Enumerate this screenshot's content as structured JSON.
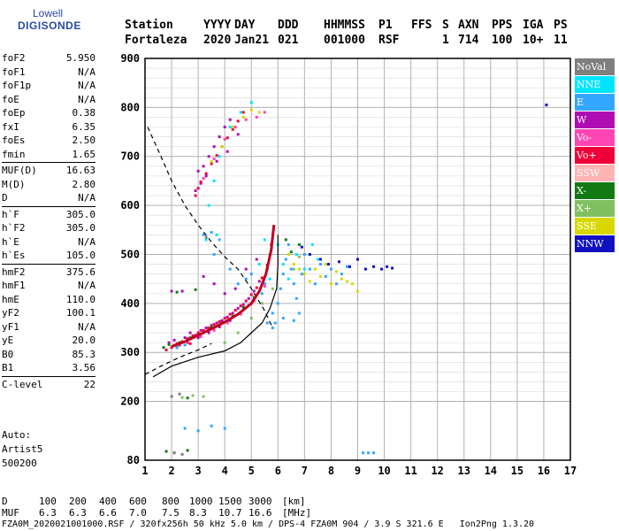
{
  "logo": {
    "line1": "Lowell",
    "line2": "DIGISONDE"
  },
  "header": {
    "labels": [
      "Station",
      "YYYY",
      "DAY",
      "DDD",
      "HHMMSS",
      "P1",
      "FFS",
      "S",
      "AXN",
      "PPS",
      "IGA",
      "PS"
    ],
    "values": [
      "Fortaleza",
      "2020",
      "Jan21",
      "021",
      "001000",
      "RSF",
      "",
      "1",
      "714",
      "100",
      "10+",
      "11"
    ]
  },
  "params": [
    {
      "k": "foF2",
      "v": "5.950"
    },
    {
      "k": "foF1",
      "v": "N/A"
    },
    {
      "k": "foF1p",
      "v": "N/A"
    },
    {
      "k": "foE",
      "v": "N/A"
    },
    {
      "k": "foEp",
      "v": "0.38"
    },
    {
      "k": "fxI",
      "v": "6.35"
    },
    {
      "k": "foEs",
      "v": "2.50"
    },
    {
      "k": "fmin",
      "v": "1.65"
    },
    {
      "sep": true
    },
    {
      "k": "MUF(D)",
      "v": "16.63"
    },
    {
      "k": "M(D)",
      "v": "2.80"
    },
    {
      "k": "D",
      "v": "N/A"
    },
    {
      "sep": true
    },
    {
      "k": "h`F",
      "v": "305.0"
    },
    {
      "k": "h`F2",
      "v": "305.0"
    },
    {
      "k": "h`E",
      "v": "N/A"
    },
    {
      "k": "h`Es",
      "v": "105.0"
    },
    {
      "sep": true
    },
    {
      "k": "hmF2",
      "v": "375.6"
    },
    {
      "k": "hmF1",
      "v": "N/A"
    },
    {
      "k": "hmE",
      "v": "110.0"
    },
    {
      "k": "yF2",
      "v": "100.1"
    },
    {
      "k": "yF1",
      "v": "N/A"
    },
    {
      "k": "yE",
      "v": "20.0"
    },
    {
      "k": "B0",
      "v": "85.3"
    },
    {
      "k": "B1",
      "v": "3.56"
    },
    {
      "sep": true
    },
    {
      "k": "C-level",
      "v": "22"
    }
  ],
  "auto": {
    "line1": "Auto:",
    "line2": "Artist5",
    "line3": "500200"
  },
  "legend": [
    {
      "label": "NoVal",
      "color": "#7f7f7f"
    },
    {
      "label": "NNE",
      "color": "#00e5ff"
    },
    {
      "label": "E",
      "color": "#33a6ff"
    },
    {
      "label": "W",
      "color": "#b00cb3"
    },
    {
      "label": "Vo-",
      "color": "#ff44b4"
    },
    {
      "label": "Vo+",
      "color": "#f00038"
    },
    {
      "label": "SSW",
      "color": "#ffb3b3"
    },
    {
      "label": "X-",
      "color": "#127a12"
    },
    {
      "label": "X+",
      "color": "#80c060"
    },
    {
      "label": "SSE",
      "color": "#d8d800"
    },
    {
      "label": "NNW",
      "color": "#1010c0"
    }
  ],
  "footer": {
    "d_label": "D",
    "d_values": [
      "100",
      "200",
      "400",
      "600",
      "800",
      "1000",
      "1500",
      "3000",
      "[km]"
    ],
    "muf_label": "MUF",
    "muf_values": [
      "6.3",
      "6.3",
      "6.6",
      "7.0",
      "7.5",
      "8.3",
      "10.7",
      "16.6",
      "[MHz]"
    ],
    "info": "FZA0M_2020021001000.RSF / 320fx256h 50 kHz 5.0 km / DPS-4 FZA0M 904 / 3.9 S 321.6 E   Ion2Png 1.3.20"
  },
  "chart_data": {
    "type": "scatter",
    "xlim": [
      1,
      17
    ],
    "ylim": [
      80,
      900
    ],
    "xticks": [
      1,
      2,
      3,
      4,
      5,
      6,
      7,
      8,
      9,
      10,
      11,
      12,
      13,
      14,
      15,
      16,
      17
    ],
    "yticks": [
      80,
      200,
      300,
      400,
      500,
      600,
      700,
      800,
      900
    ],
    "grid": true,
    "series": [
      {
        "color": "#b00cb3",
        "points": [
          [
            1.9,
            320
          ],
          [
            2.1,
            325
          ],
          [
            2.3,
            315
          ],
          [
            2.5,
            330
          ],
          [
            2.7,
            340
          ],
          [
            2.9,
            335
          ],
          [
            3.1,
            345
          ],
          [
            3.3,
            350
          ],
          [
            3.5,
            355
          ],
          [
            3.7,
            360
          ],
          [
            3.9,
            365
          ],
          [
            4.1,
            372
          ],
          [
            4.3,
            380
          ],
          [
            4.5,
            390
          ],
          [
            4.7,
            398
          ],
          [
            4.9,
            410
          ],
          [
            5.1,
            425
          ],
          [
            5.3,
            445
          ],
          [
            2.2,
            310
          ],
          [
            2.6,
            320
          ],
          [
            3.0,
            330
          ],
          [
            3.4,
            340
          ],
          [
            3.8,
            352
          ],
          [
            4.2,
            365
          ],
          [
            4.6,
            380
          ],
          [
            5.0,
            400
          ],
          [
            4.0,
            420
          ],
          [
            4.4,
            430
          ],
          [
            3.6,
            440
          ],
          [
            4.8,
            470
          ],
          [
            3.2,
            455
          ],
          [
            5.2,
            490
          ],
          [
            2.0,
            425
          ],
          [
            2.4,
            425
          ],
          [
            3.0,
            670
          ],
          [
            3.2,
            680
          ],
          [
            3.4,
            700
          ],
          [
            3.6,
            720
          ],
          [
            3.8,
            740
          ],
          [
            4.0,
            760
          ],
          [
            4.2,
            775
          ],
          [
            2.9,
            630
          ],
          [
            3.1,
            645
          ],
          [
            3.3,
            660
          ],
          [
            3.7,
            690
          ],
          [
            4.1,
            710
          ],
          [
            4.5,
            745
          ]
        ]
      },
      {
        "color": "#f00038",
        "points": [
          [
            1.8,
            305
          ],
          [
            2.0,
            310
          ],
          [
            2.2,
            318
          ],
          [
            2.4,
            322
          ],
          [
            2.6,
            328
          ],
          [
            2.8,
            334
          ],
          [
            3.0,
            340
          ],
          [
            3.2,
            345
          ],
          [
            3.4,
            350
          ],
          [
            3.6,
            357
          ],
          [
            3.8,
            363
          ],
          [
            4.0,
            370
          ],
          [
            4.2,
            378
          ],
          [
            4.4,
            386
          ],
          [
            4.6,
            395
          ],
          [
            4.8,
            405
          ],
          [
            5.0,
            418
          ],
          [
            5.2,
            432
          ],
          [
            5.4,
            452
          ],
          [
            5.6,
            478
          ],
          [
            5.75,
            520
          ],
          [
            2.9,
            620
          ],
          [
            3.0,
            635
          ],
          [
            3.1,
            648
          ],
          [
            3.3,
            665
          ],
          [
            3.5,
            685
          ],
          [
            3.7,
            702
          ],
          [
            3.9,
            720
          ],
          [
            4.1,
            738
          ],
          [
            4.3,
            755
          ],
          [
            4.5,
            772
          ],
          [
            4.7,
            790
          ],
          [
            2.7,
            318
          ]
        ]
      },
      {
        "color": "#127a12",
        "points": [
          [
            1.9,
            316
          ],
          [
            2.3,
            320
          ],
          [
            2.7,
            330
          ],
          [
            3.1,
            338
          ],
          [
            3.5,
            352
          ],
          [
            3.9,
            360
          ],
          [
            4.3,
            374
          ],
          [
            4.7,
            392
          ],
          [
            5.1,
            412
          ],
          [
            5.5,
            440
          ],
          [
            1.7,
            310
          ],
          [
            2.9,
            428
          ],
          [
            2.2,
            423
          ],
          [
            2.6,
            207
          ],
          [
            1.8,
            98
          ],
          [
            2.1,
            95
          ],
          [
            2.6,
            100
          ],
          [
            6.3,
            530
          ],
          [
            6.5,
            505
          ],
          [
            6.8,
            520
          ]
        ]
      },
      {
        "color": "#33a6ff",
        "points": [
          [
            5.4,
            420
          ],
          [
            5.5,
            440
          ],
          [
            5.6,
            470
          ],
          [
            5.7,
            500
          ],
          [
            5.8,
            380
          ],
          [
            5.9,
            360
          ],
          [
            6.0,
            400
          ],
          [
            6.1,
            430
          ],
          [
            6.2,
            460
          ],
          [
            6.3,
            490
          ],
          [
            6.4,
            520
          ],
          [
            6.5,
            470
          ],
          [
            6.6,
            440
          ],
          [
            6.7,
            410
          ],
          [
            6.8,
            380
          ],
          [
            6.9,
            460
          ],
          [
            7.0,
            500
          ],
          [
            7.2,
            470
          ],
          [
            7.4,
            440
          ],
          [
            7.6,
            480
          ],
          [
            7.8,
            455
          ],
          [
            8.0,
            470
          ],
          [
            8.2,
            440
          ],
          [
            8.4,
            460
          ],
          [
            8.6,
            475
          ],
          [
            5.6,
            360
          ],
          [
            5.8,
            350
          ],
          [
            6.2,
            370
          ],
          [
            6.6,
            365
          ],
          [
            3.2,
            540
          ],
          [
            3.5,
            545
          ],
          [
            3.8,
            530
          ],
          [
            2.5,
            145
          ],
          [
            3.0,
            140
          ],
          [
            3.5,
            150
          ],
          [
            4.0,
            145
          ],
          [
            9.2,
            95
          ],
          [
            9.4,
            95
          ],
          [
            9.6,
            95
          ],
          [
            2.2,
            310
          ],
          [
            2.5,
            315
          ],
          [
            4.5,
            440
          ],
          [
            4.8,
            450
          ],
          [
            5.0,
            460
          ],
          [
            3.6,
            500
          ],
          [
            4.2,
            470
          ]
        ]
      },
      {
        "color": "#00e5ff",
        "points": [
          [
            5.3,
            480
          ],
          [
            5.5,
            530
          ],
          [
            5.7,
            450
          ],
          [
            6.0,
            520
          ],
          [
            6.2,
            480
          ],
          [
            6.4,
            450
          ],
          [
            6.7,
            500
          ],
          [
            7.0,
            470
          ],
          [
            7.3,
            520
          ],
          [
            7.5,
            490
          ],
          [
            3.4,
            600
          ],
          [
            3.6,
            650
          ],
          [
            3.8,
            700
          ],
          [
            4.2,
            760
          ],
          [
            4.6,
            790
          ],
          [
            5.0,
            810
          ],
          [
            3.3,
            530
          ],
          [
            3.7,
            540
          ]
        ]
      },
      {
        "color": "#d8d800",
        "points": [
          [
            6.4,
            500
          ],
          [
            6.6,
            480
          ],
          [
            6.8,
            470
          ],
          [
            7.0,
            460
          ],
          [
            7.2,
            445
          ],
          [
            7.4,
            470
          ],
          [
            7.6,
            455
          ],
          [
            7.8,
            480
          ],
          [
            8.0,
            440
          ],
          [
            8.2,
            465
          ],
          [
            8.4,
            450
          ],
          [
            8.6,
            445
          ],
          [
            8.8,
            440
          ],
          [
            9.0,
            425
          ],
          [
            3.5,
            690
          ],
          [
            3.9,
            720
          ],
          [
            4.3,
            760
          ],
          [
            4.7,
            780
          ],
          [
            5.0,
            795
          ],
          [
            5.3,
            790
          ]
        ]
      },
      {
        "color": "#1010c0",
        "points": [
          [
            7.6,
            490
          ],
          [
            7.9,
            480
          ],
          [
            8.3,
            485
          ],
          [
            8.7,
            475
          ],
          [
            9.0,
            490
          ],
          [
            9.3,
            470
          ],
          [
            9.6,
            475
          ],
          [
            9.9,
            470
          ],
          [
            10.1,
            475
          ],
          [
            10.3,
            472
          ],
          [
            16.1,
            805
          ],
          [
            7.2,
            500
          ],
          [
            6.9,
            515
          ]
        ]
      },
      {
        "color": "#ff44b4",
        "points": [
          [
            2.1,
            315
          ],
          [
            2.6,
            322
          ],
          [
            3.1,
            332
          ],
          [
            3.6,
            345
          ],
          [
            4.1,
            360
          ],
          [
            4.6,
            378
          ],
          [
            5.1,
            405
          ],
          [
            5.5,
            435
          ],
          [
            3.2,
            655
          ],
          [
            3.6,
            695
          ],
          [
            4.0,
            735
          ],
          [
            4.4,
            760
          ],
          [
            4.8,
            775
          ],
          [
            5.2,
            780
          ],
          [
            5.5,
            790
          ]
        ]
      },
      {
        "color": "#80c060",
        "points": [
          [
            4.0,
            320
          ],
          [
            4.5,
            340
          ],
          [
            5.0,
            370
          ],
          [
            5.4,
            400
          ],
          [
            5.8,
            430
          ],
          [
            6.6,
            470
          ],
          [
            6.8,
            495
          ],
          [
            2.4,
            208
          ],
          [
            2.8,
            212
          ],
          [
            3.2,
            210
          ]
        ]
      },
      {
        "color": "#7f7f7f",
        "points": [
          [
            2.0,
            210
          ],
          [
            2.3,
            215
          ],
          [
            2.1,
            95
          ],
          [
            2.4,
            92
          ],
          [
            3.3,
            535
          ]
        ]
      }
    ],
    "curves": [
      {
        "style": "solid",
        "points": [
          [
            1.3,
            250
          ],
          [
            2.0,
            272
          ],
          [
            3.0,
            290
          ],
          [
            4.0,
            303
          ],
          [
            4.6,
            320
          ],
          [
            5.0,
            340
          ],
          [
            5.4,
            360
          ],
          [
            5.7,
            390
          ],
          [
            5.95,
            430
          ],
          [
            6.0,
            480
          ],
          [
            6.0,
            540
          ]
        ]
      },
      {
        "style": "dashed",
        "points": [
          [
            1.1,
            760
          ],
          [
            1.6,
            700
          ],
          [
            2.0,
            650
          ],
          [
            2.5,
            600
          ],
          [
            3.0,
            560
          ],
          [
            3.5,
            525
          ],
          [
            4.0,
            495
          ],
          [
            4.5,
            470
          ],
          [
            5.0,
            430
          ],
          [
            5.5,
            385
          ],
          [
            5.8,
            350
          ]
        ]
      },
      {
        "style": "dashed",
        "points": [
          [
            1.0,
            255
          ],
          [
            1.6,
            272
          ],
          [
            2.3,
            290
          ],
          [
            3.0,
            305
          ],
          [
            3.5,
            318
          ]
        ]
      },
      {
        "style": "thick-red",
        "points": [
          [
            2.0,
            312
          ],
          [
            2.5,
            322
          ],
          [
            3.0,
            335
          ],
          [
            3.5,
            348
          ],
          [
            4.0,
            362
          ],
          [
            4.5,
            378
          ],
          [
            5.0,
            400
          ],
          [
            5.3,
            425
          ],
          [
            5.55,
            460
          ],
          [
            5.75,
            510
          ],
          [
            5.85,
            560
          ]
        ]
      }
    ]
  }
}
